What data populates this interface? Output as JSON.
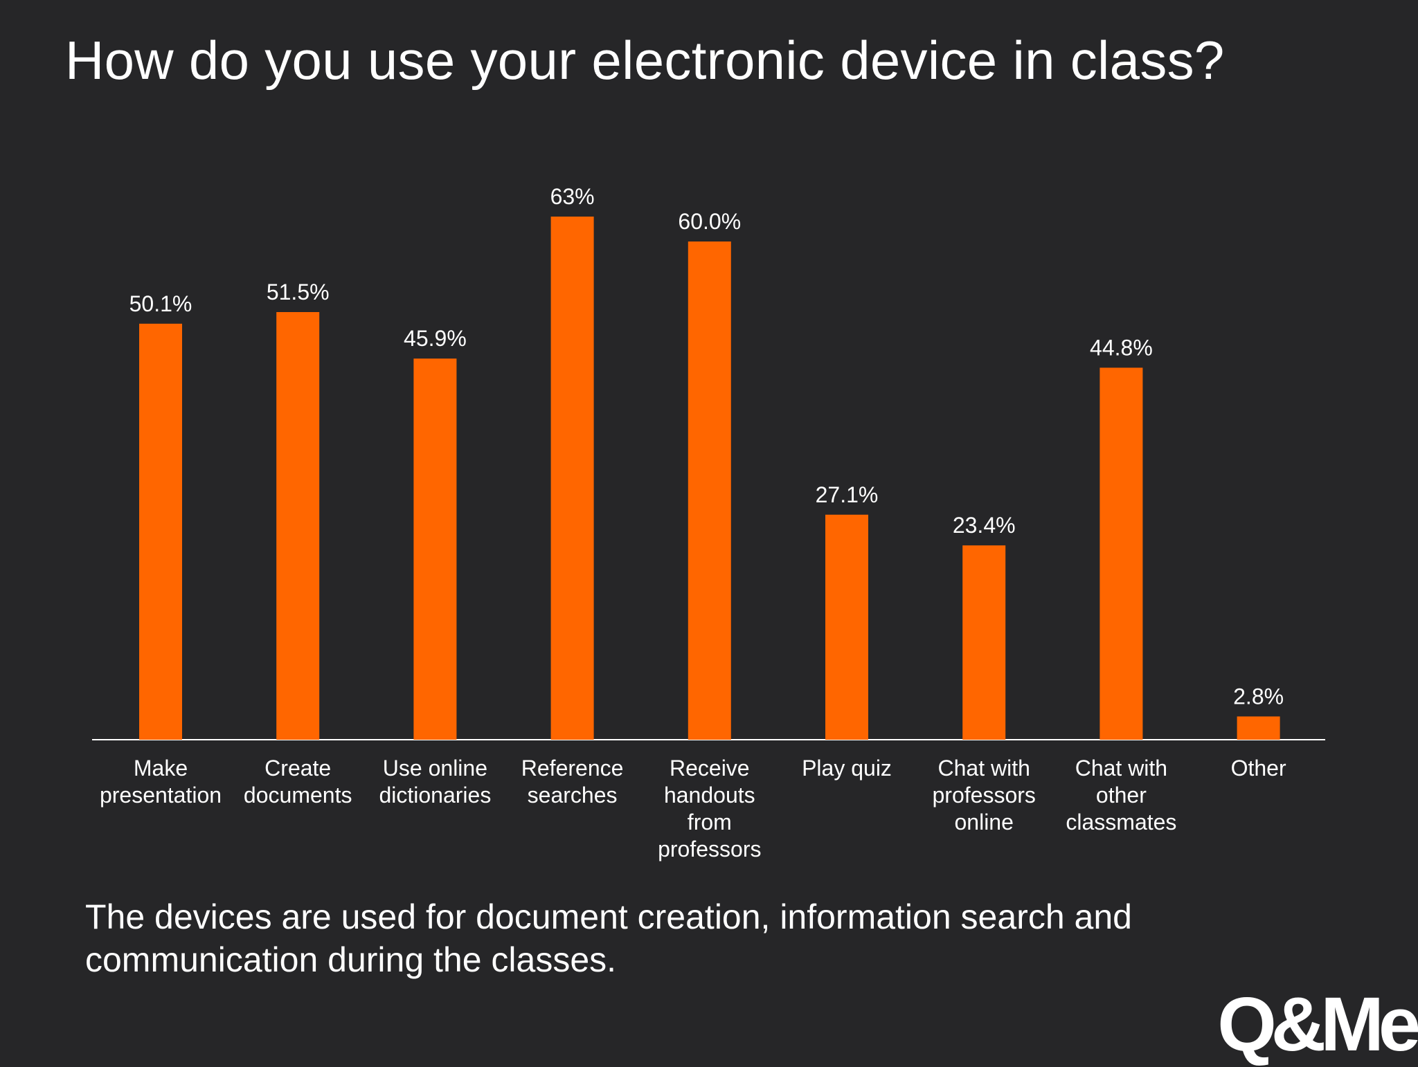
{
  "title": "How do you use your electronic device in class?",
  "takeaway": "The devices are used for document creation, information search and communication during the classes.",
  "logo": "Q&Me",
  "colors": {
    "background": "#262628",
    "bar": "#ff6600",
    "text": "#ffffff",
    "axis": "#ffffff"
  },
  "chart_data": {
    "type": "bar",
    "title": "How do you use your electronic device in class?",
    "xlabel": "",
    "ylabel": "",
    "ylim": [
      0,
      70
    ],
    "grid": false,
    "legend": "none",
    "categories": [
      [
        "Make",
        "presentation"
      ],
      [
        "Create",
        "documents"
      ],
      [
        "Use online",
        "dictionaries"
      ],
      [
        "Reference",
        "searches"
      ],
      [
        "Receive",
        "handouts",
        "from",
        "professors"
      ],
      [
        "Play quiz"
      ],
      [
        "Chat with",
        "professors",
        "online"
      ],
      [
        "Chat with",
        "other",
        "classmates"
      ],
      [
        "Other"
      ]
    ],
    "values": [
      50.1,
      51.5,
      45.9,
      63,
      60.0,
      27.1,
      23.4,
      44.8,
      2.8
    ],
    "value_labels": [
      "50.1%",
      "51.5%",
      "45.9%",
      "63%",
      "60.0%",
      "27.1%",
      "23.4%",
      "44.8%",
      "2.8%"
    ]
  }
}
